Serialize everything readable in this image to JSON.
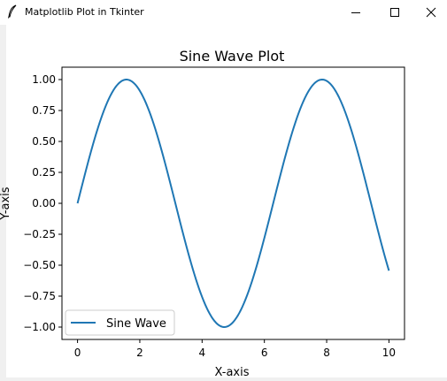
{
  "window": {
    "title": "Matplotlib Plot in Tkinter",
    "icon": "feather-icon",
    "controls": [
      "minimize-icon",
      "maximize-icon",
      "close-icon"
    ]
  },
  "chart_data": {
    "type": "line",
    "title": "Sine Wave Plot",
    "xlabel": "X-axis",
    "ylabel": "Y-axis",
    "xlim": [
      -0.5,
      10.5
    ],
    "ylim": [
      -1.1,
      1.1
    ],
    "x_ticks": [
      0,
      2,
      4,
      6,
      8,
      10
    ],
    "x_tick_labels": [
      "0",
      "2",
      "4",
      "6",
      "8",
      "10"
    ],
    "y_ticks": [
      -1.0,
      -0.75,
      -0.5,
      -0.25,
      0.0,
      0.25,
      0.5,
      0.75,
      1.0
    ],
    "y_tick_labels": [
      "−1.00",
      "−0.75",
      "−0.50",
      "−0.25",
      "0.00",
      "0.25",
      "0.50",
      "0.75",
      "1.00"
    ],
    "grid": false,
    "legend": {
      "position": "lower left",
      "entries": [
        "Sine Wave"
      ]
    },
    "series": [
      {
        "name": "Sine Wave",
        "function": "sin(x)",
        "x_start": 0,
        "x_end": 10,
        "color": "#1f77b4"
      }
    ]
  }
}
